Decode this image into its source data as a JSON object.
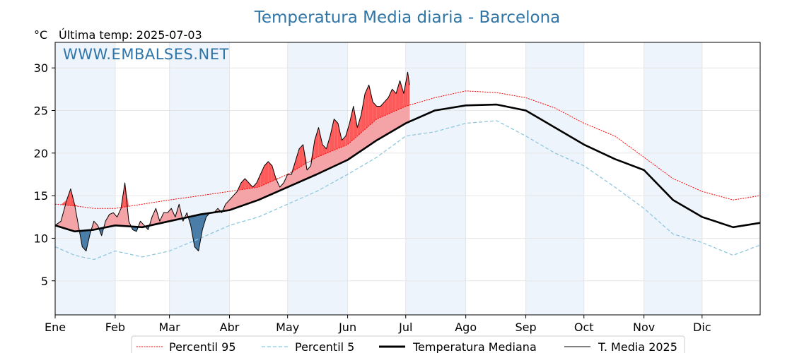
{
  "chart_data": {
    "type": "line",
    "title": "Temperatura Media diaria - Barcelona",
    "unit": "°C",
    "subtitle": "Última temp: 2025-07-03",
    "watermark": "WWW.EMBALSES.NET",
    "ylim": [
      1,
      33
    ],
    "y_ticks": [
      5,
      10,
      15,
      20,
      25,
      30
    ],
    "x_ticks": [
      "Ene",
      "Feb",
      "Mar",
      "Abr",
      "May",
      "Jun",
      "Jul",
      "Ago",
      "Sep",
      "Oct",
      "Nov",
      "Dic"
    ],
    "x_tick_days": [
      0,
      31,
      59,
      90,
      120,
      151,
      181,
      212,
      243,
      273,
      304,
      334
    ],
    "xlim": [
      0,
      364
    ],
    "grid": true,
    "legend_position": "bottom-center",
    "colors": {
      "p95": "#ff0000",
      "p5": "#8ec8e0",
      "median": "#000000",
      "current": "#000000",
      "warm_fill": "#f4a3a6",
      "hot_fill": "#ff5a5a",
      "cold_fill": "#4a7ea8",
      "band": "#eef4fb"
    },
    "series": [
      {
        "name": "Percentil 95",
        "key": "p95",
        "x": [
          0,
          10,
          20,
          31,
          45,
          59,
          75,
          90,
          105,
          120,
          135,
          151,
          166,
          181,
          196,
          212,
          228,
          243,
          258,
          273,
          289,
          304,
          319,
          334,
          350,
          364
        ],
        "y": [
          14.0,
          13.8,
          13.5,
          13.5,
          14.0,
          14.5,
          15.0,
          15.5,
          16.0,
          17.5,
          19.5,
          21.0,
          24.0,
          25.5,
          26.5,
          27.3,
          27.1,
          26.5,
          25.3,
          23.5,
          22.0,
          19.5,
          17.0,
          15.5,
          14.5,
          15.0
        ]
      },
      {
        "name": "Percentil 5",
        "key": "p5",
        "x": [
          0,
          10,
          20,
          31,
          45,
          59,
          75,
          90,
          105,
          120,
          135,
          151,
          166,
          181,
          196,
          212,
          228,
          243,
          258,
          273,
          289,
          304,
          319,
          334,
          350,
          364
        ],
        "y": [
          9.0,
          8.0,
          7.5,
          8.5,
          7.8,
          8.5,
          10.0,
          11.5,
          12.5,
          14.0,
          15.5,
          17.5,
          19.5,
          22.0,
          22.5,
          23.5,
          23.8,
          22.0,
          20.0,
          18.5,
          16.0,
          13.5,
          10.5,
          9.5,
          8.0,
          9.2
        ]
      },
      {
        "name": "Temperatura Mediana",
        "key": "median",
        "x": [
          0,
          10,
          20,
          31,
          45,
          59,
          75,
          90,
          105,
          120,
          135,
          151,
          166,
          181,
          196,
          212,
          228,
          243,
          258,
          273,
          289,
          304,
          319,
          334,
          350,
          364
        ],
        "y": [
          11.5,
          10.8,
          11.0,
          11.5,
          11.3,
          12.0,
          12.8,
          13.3,
          14.5,
          16.0,
          17.5,
          19.2,
          21.5,
          23.5,
          25.0,
          25.6,
          25.7,
          25.0,
          23.0,
          21.0,
          19.3,
          18.0,
          14.5,
          12.5,
          11.3,
          11.8
        ]
      },
      {
        "name": "T. Media 2025",
        "key": "current",
        "x": [
          0,
          3,
          6,
          8,
          10,
          12,
          14,
          16,
          18,
          20,
          22,
          24,
          26,
          28,
          30,
          32,
          34,
          36,
          38,
          40,
          42,
          44,
          46,
          48,
          50,
          52,
          54,
          56,
          58,
          60,
          62,
          64,
          66,
          68,
          70,
          72,
          74,
          76,
          78,
          80,
          82,
          84,
          86,
          88,
          90,
          92,
          94,
          96,
          98,
          100,
          102,
          104,
          106,
          108,
          110,
          112,
          114,
          116,
          118,
          120,
          122,
          124,
          126,
          128,
          130,
          132,
          134,
          136,
          138,
          140,
          142,
          144,
          146,
          148,
          150,
          152,
          154,
          156,
          158,
          160,
          162,
          164,
          166,
          168,
          170,
          172,
          174,
          176,
          178,
          180,
          182,
          183
        ],
        "y": [
          11.5,
          12.0,
          14.5,
          15.8,
          14.0,
          11.5,
          9.0,
          8.5,
          10.5,
          12.0,
          11.5,
          10.3,
          12.0,
          12.8,
          13.0,
          12.5,
          13.5,
          16.5,
          12.0,
          11.0,
          10.8,
          12.0,
          11.5,
          11.0,
          12.5,
          13.5,
          12.0,
          13.0,
          13.0,
          13.5,
          12.5,
          14.0,
          12.0,
          13.0,
          11.5,
          9.0,
          8.5,
          11.0,
          12.5,
          13.0,
          13.0,
          13.5,
          13.0,
          14.0,
          14.5,
          15.0,
          15.5,
          16.5,
          17.0,
          16.5,
          16.0,
          16.5,
          17.5,
          18.5,
          19.0,
          18.5,
          17.0,
          16.0,
          16.5,
          17.5,
          17.5,
          19.0,
          20.5,
          21.0,
          18.0,
          18.5,
          21.5,
          23.0,
          21.0,
          20.5,
          22.0,
          24.0,
          23.5,
          21.5,
          22.0,
          23.5,
          25.5,
          23.0,
          24.5,
          27.0,
          28.0,
          26.0,
          25.5,
          25.5,
          26.0,
          26.5,
          27.5,
          27.0,
          28.5,
          27.0,
          29.5,
          28.0
        ]
      }
    ]
  }
}
